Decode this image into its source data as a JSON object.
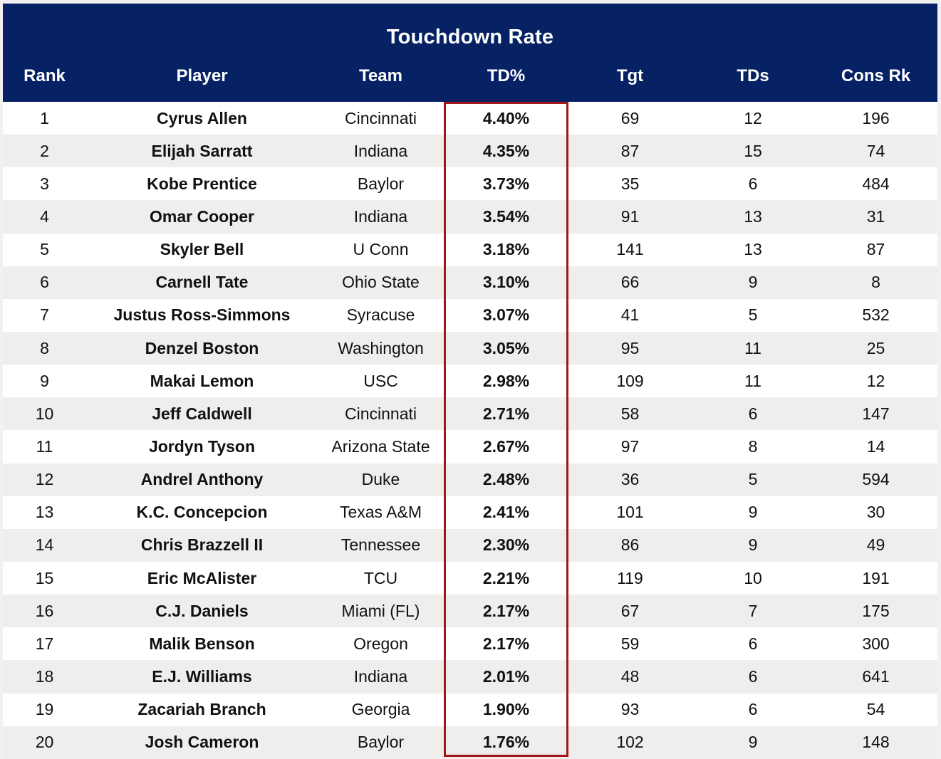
{
  "chart_data": {
    "type": "table",
    "title": "Touchdown Rate",
    "columns": [
      "Rank",
      "Player",
      "Team",
      "TD%",
      "Tgt",
      "TDs",
      "Cons Rk"
    ],
    "rows": [
      [
        "1",
        "Cyrus Allen",
        "Cincinnati",
        "4.40%",
        "69",
        "12",
        "196"
      ],
      [
        "2",
        "Elijah Sarratt",
        "Indiana",
        "4.35%",
        "87",
        "15",
        "74"
      ],
      [
        "3",
        "Kobe Prentice",
        "Baylor",
        "3.73%",
        "35",
        "6",
        "484"
      ],
      [
        "4",
        "Omar Cooper",
        "Indiana",
        "3.54%",
        "91",
        "13",
        "31"
      ],
      [
        "5",
        "Skyler Bell",
        "U Conn",
        "3.18%",
        "141",
        "13",
        "87"
      ],
      [
        "6",
        "Carnell Tate",
        "Ohio State",
        "3.10%",
        "66",
        "9",
        "8"
      ],
      [
        "7",
        "Justus Ross-Simmons",
        "Syracuse",
        "3.07%",
        "41",
        "5",
        "532"
      ],
      [
        "8",
        "Denzel Boston",
        "Washington",
        "3.05%",
        "95",
        "11",
        "25"
      ],
      [
        "9",
        "Makai Lemon",
        "USC",
        "2.98%",
        "109",
        "11",
        "12"
      ],
      [
        "10",
        "Jeff Caldwell",
        "Cincinnati",
        "2.71%",
        "58",
        "6",
        "147"
      ],
      [
        "11",
        "Jordyn Tyson",
        "Arizona State",
        "2.67%",
        "97",
        "8",
        "14"
      ],
      [
        "12",
        "Andrel Anthony",
        "Duke",
        "2.48%",
        "36",
        "5",
        "594"
      ],
      [
        "13",
        "K.C. Concepcion",
        "Texas A&M",
        "2.41%",
        "101",
        "9",
        "30"
      ],
      [
        "14",
        "Chris Brazzell II",
        "Tennessee",
        "2.30%",
        "86",
        "9",
        "49"
      ],
      [
        "15",
        "Eric McAlister",
        "TCU",
        "2.21%",
        "119",
        "10",
        "191"
      ],
      [
        "16",
        "C.J. Daniels",
        "Miami (FL)",
        "2.17%",
        "67",
        "7",
        "175"
      ],
      [
        "17",
        "Malik Benson",
        "Oregon",
        "2.17%",
        "59",
        "6",
        "300"
      ],
      [
        "18",
        "E.J. Williams",
        "Indiana",
        "2.01%",
        "48",
        "6",
        "641"
      ],
      [
        "19",
        "Zacariah Branch",
        "Georgia",
        "1.90%",
        "93",
        "6",
        "54"
      ],
      [
        "20",
        "Josh Cameron",
        "Baylor",
        "1.76%",
        "102",
        "9",
        "148"
      ]
    ],
    "layout": {
      "highlighted_column": "TD%",
      "legend": "none",
      "grid": "zebra-stripes"
    }
  },
  "colors": {
    "header_bg": "#062264",
    "header_text": "#ffffff",
    "body_text": "#111111",
    "row_stripe": "#efeeec",
    "row_white": "#ffffff",
    "page_bg": "#f2f1ef",
    "highlight_border": "#a11616"
  }
}
